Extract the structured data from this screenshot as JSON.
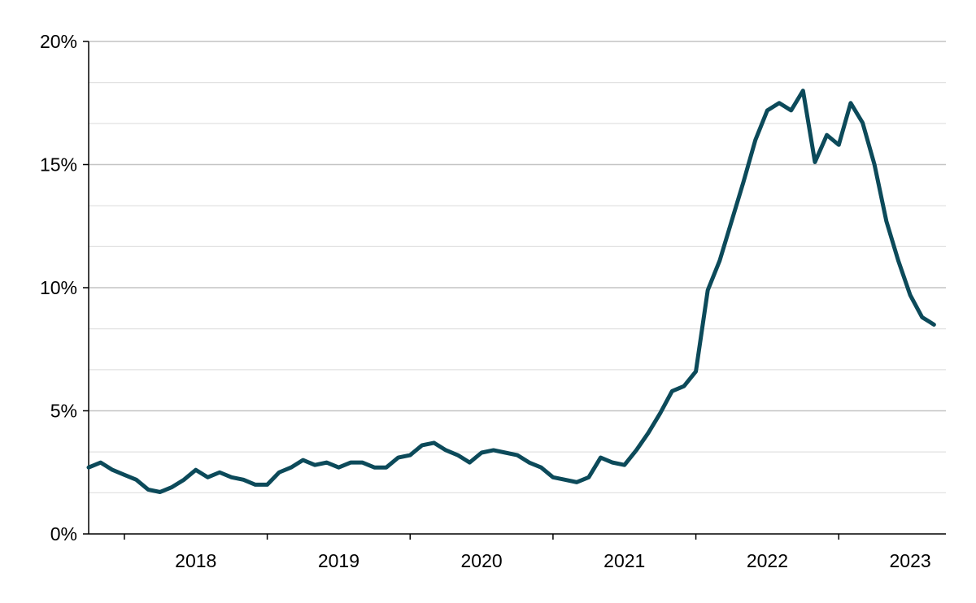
{
  "chart_data": {
    "type": "line",
    "title": "",
    "xlabel": "",
    "ylabel": "",
    "x_tick_labels": [
      "2018",
      "2019",
      "2020",
      "2021",
      "2022",
      "2023"
    ],
    "y_tick_labels": [
      "0%",
      "5%",
      "10%",
      "15%",
      "20%"
    ],
    "y_ticks": [
      0,
      5,
      10,
      15,
      20
    ],
    "y_minor_gridlines": [
      1.67,
      3.33,
      6.67,
      8.33,
      11.67,
      13.33,
      16.67,
      18.33
    ],
    "ylim": [
      0,
      20
    ],
    "xlim": [
      "2017-10",
      "2023-10"
    ],
    "grid": true,
    "line_color": "#0c4a5a",
    "series": [
      {
        "x": [
          "2017-10",
          "2017-11",
          "2017-12",
          "2018-01",
          "2018-02",
          "2018-03",
          "2018-04",
          "2018-05",
          "2018-06",
          "2018-07",
          "2018-08",
          "2018-09",
          "2018-10",
          "2018-11",
          "2018-12",
          "2019-01",
          "2019-02",
          "2019-03",
          "2019-04",
          "2019-05",
          "2019-06",
          "2019-07",
          "2019-08",
          "2019-09",
          "2019-10",
          "2019-11",
          "2019-12",
          "2020-01",
          "2020-02",
          "2020-03",
          "2020-04",
          "2020-05",
          "2020-06",
          "2020-07",
          "2020-08",
          "2020-09",
          "2020-10",
          "2020-11",
          "2020-12",
          "2021-01",
          "2021-02",
          "2021-03",
          "2021-04",
          "2021-05",
          "2021-06",
          "2021-07",
          "2021-08",
          "2021-09",
          "2021-10",
          "2021-11",
          "2021-12",
          "2022-01",
          "2022-02",
          "2022-03",
          "2022-04",
          "2022-05",
          "2022-06",
          "2022-07",
          "2022-08",
          "2022-09",
          "2022-10",
          "2022-11",
          "2022-12",
          "2023-01",
          "2023-02",
          "2023-03",
          "2023-04",
          "2023-05",
          "2023-06",
          "2023-07",
          "2023-08",
          "2023-09"
        ],
        "values": [
          2.7,
          2.9,
          2.6,
          2.4,
          2.2,
          1.8,
          1.7,
          1.9,
          2.2,
          2.6,
          2.3,
          2.5,
          2.3,
          2.2,
          2.0,
          2.0,
          2.5,
          2.7,
          3.0,
          2.8,
          2.9,
          2.7,
          2.9,
          2.9,
          2.7,
          2.7,
          3.1,
          3.2,
          3.6,
          3.7,
          3.4,
          3.2,
          2.9,
          3.3,
          3.4,
          3.3,
          3.2,
          2.9,
          2.7,
          2.3,
          2.2,
          2.1,
          2.3,
          3.1,
          2.9,
          2.8,
          3.4,
          4.1,
          4.9,
          5.8,
          6.0,
          6.6,
          9.9,
          11.1,
          12.7,
          14.3,
          16.0,
          17.2,
          17.5,
          17.2,
          18.0,
          15.1,
          16.2,
          15.8,
          17.5,
          16.7,
          15.0,
          12.7,
          11.1,
          9.7,
          8.8,
          8.5
        ]
      }
    ]
  }
}
